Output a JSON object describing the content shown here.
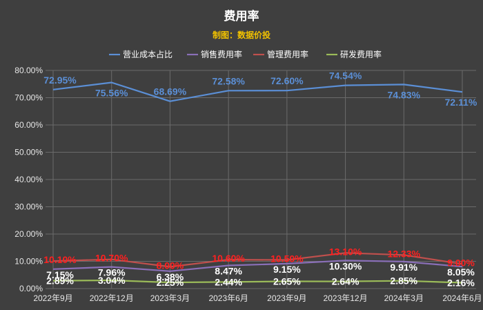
{
  "title": "费用率",
  "subtitle": "制图：数据价投",
  "colors": {
    "background": "#3f3f3f",
    "grid": "#6b6b6b",
    "subtitle": "#f2c200"
  },
  "chart_data": {
    "type": "line",
    "categories": [
      "2022年9月",
      "2022年12月",
      "2023年3月",
      "2023年6月",
      "2023年9月",
      "2023年12月",
      "2024年3月",
      "2024年6月"
    ],
    "ylim": [
      0,
      80
    ],
    "yticks": [
      "0.00%",
      "10.00%",
      "20.00%",
      "30.00%",
      "40.00%",
      "50.00%",
      "60.00%",
      "70.00%",
      "80.00%"
    ],
    "grid": true,
    "legend_position": "top",
    "series": [
      {
        "name": "营业成本占比",
        "color": "#5b8fd6",
        "label_color": "#5b8fd6",
        "values": [
          72.95,
          75.56,
          68.69,
          72.58,
          72.6,
          74.54,
          74.83,
          72.11
        ],
        "labels": [
          "72.95%",
          "75.56%",
          "68.69%",
          "72.58%",
          "72.60%",
          "74.54%",
          "74.83%",
          "72.11%"
        ]
      },
      {
        "name": "销售费用率",
        "color": "#8a6fb8",
        "label_color": "#ffffff",
        "values": [
          7.15,
          7.96,
          6.38,
          8.47,
          9.15,
          10.3,
          9.91,
          8.05
        ],
        "labels": [
          "7.15%",
          "7.96%",
          "6.38%",
          "8.47%",
          "9.15%",
          "10.30%",
          "9.91%",
          "8.05%"
        ]
      },
      {
        "name": "管理费用率",
        "color": "#c0504d",
        "label_color": "#ff2020",
        "values": [
          10.1,
          10.7,
          8.0,
          10.6,
          10.5,
          13.1,
          12.33,
          9.0
        ],
        "labels": [
          "10.10%",
          "10.70%",
          "8.00%",
          "10.60%",
          "10.50%",
          "13.10%",
          "12.33%",
          "9.00%"
        ]
      },
      {
        "name": "研发费用率",
        "color": "#9bbb59",
        "label_color": "#ffffff",
        "values": [
          2.89,
          3.04,
          2.25,
          2.44,
          2.65,
          2.64,
          2.85,
          2.16
        ],
        "labels": [
          "2.89%",
          "3.04%",
          "2.25%",
          "2.44%",
          "2.65%",
          "2.64%",
          "2.85%",
          "2.16%"
        ]
      }
    ]
  }
}
